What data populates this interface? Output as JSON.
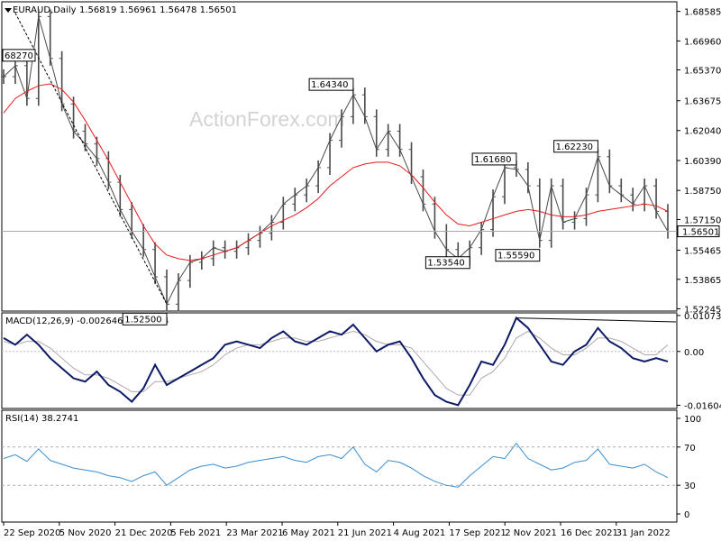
{
  "header": {
    "symbol": "EURAUD,Daily",
    "ohlc": "1.56819 1.56961 1.56478 1.56501"
  },
  "watermark": "ActionForex.com",
  "colors": {
    "price": "#4a4a4a",
    "ma": "#e31a1c",
    "macd": "#0d1a66",
    "signal": "#b3a7a7",
    "rsi": "#3b8ecf",
    "grid": "#888888"
  },
  "chart_data": [
    {
      "type": "candlestick",
      "title": "EURAUD,Daily",
      "ylim": [
        1.5212,
        1.6911
      ],
      "yticks": [
        1.68585,
        1.6696,
        1.6537,
        1.63675,
        1.6204,
        1.6039,
        1.5875,
        1.5715,
        1.55465,
        1.53865,
        1.52245
      ],
      "ytick_labels": [
        "1.68585",
        "1.66960",
        "1.65370",
        "1.63675",
        "1.62040",
        "1.60390",
        "1.58750",
        "1.57150",
        "1.55465",
        "1.53865",
        "1.52245"
      ],
      "last_price": "1.56501",
      "series": [
        {
          "name": "close",
          "values": [
            1.65,
            1.656,
            1.638,
            1.683,
            1.66,
            1.635,
            1.62,
            1.613,
            1.605,
            1.592,
            1.577,
            1.565,
            1.555,
            1.54,
            1.525,
            1.538,
            1.548,
            1.55,
            1.556,
            1.554,
            1.556,
            1.56,
            1.564,
            1.57,
            1.58,
            1.585,
            1.59,
            1.6,
            1.615,
            1.628,
            1.64,
            1.628,
            1.61,
            1.62,
            1.61,
            1.595,
            1.58,
            1.565,
            1.555,
            1.55,
            1.556,
            1.566,
            1.584,
            1.6,
            1.599,
            1.59,
            1.56,
            1.59,
            1.57,
            1.572,
            1.585,
            1.606,
            1.59,
            1.585,
            1.58,
            1.59,
            1.576,
            1.565
          ]
        },
        {
          "name": "ma",
          "values": [
            1.63,
            1.638,
            1.642,
            1.645,
            1.646,
            1.643,
            1.636,
            1.626,
            1.615,
            1.604,
            1.592,
            1.58,
            1.568,
            1.558,
            1.552,
            1.55,
            1.549,
            1.55,
            1.552,
            1.554,
            1.556,
            1.56,
            1.564,
            1.568,
            1.571,
            1.574,
            1.578,
            1.583,
            1.59,
            1.595,
            1.6,
            1.602,
            1.603,
            1.603,
            1.601,
            1.596,
            1.589,
            1.581,
            1.574,
            1.569,
            1.568,
            1.57,
            1.572,
            1.574,
            1.576,
            1.577,
            1.576,
            1.574,
            1.573,
            1.573,
            1.574,
            1.576,
            1.577,
            1.578,
            1.579,
            1.58,
            1.579,
            1.576
          ]
        }
      ],
      "annotations": [
        {
          "label": "68270",
          "date_index": 1
        },
        {
          "label": "1.52500",
          "date_index": 14
        },
        {
          "label": "1.64340",
          "date_index": 30
        },
        {
          "label": "1.53540",
          "date_index": 40
        },
        {
          "label": "1.61680",
          "date_index": 44
        },
        {
          "label": "1.55590",
          "date_index": 46
        },
        {
          "label": "1.62230",
          "date_index": 51
        }
      ],
      "trendline": {
        "from": {
          "date_index": 1,
          "price": 1.685
        },
        "to": {
          "date_index": 14,
          "price": 1.525
        }
      }
    },
    {
      "type": "line",
      "title": "MACD(12,26,9) -0.002646 0.001774",
      "ylim": [
        -0.017,
        0.0115
      ],
      "ytick_labels": [
        "0.010736",
        "0.00",
        "-0.016046"
      ],
      "yticks": [
        0.010736,
        0.0,
        -0.016046
      ],
      "series": [
        {
          "name": "MACD",
          "values": [
            0.004,
            0.002,
            0.005,
            0.002,
            -0.002,
            -0.005,
            -0.008,
            -0.009,
            -0.006,
            -0.01,
            -0.012,
            -0.015,
            -0.011,
            -0.004,
            -0.01,
            -0.008,
            -0.006,
            -0.004,
            -0.002,
            0.002,
            0.003,
            0.002,
            0.001,
            0.004,
            0.006,
            0.003,
            0.002,
            0.004,
            0.006,
            0.005,
            0.008,
            0.004,
            0.0,
            0.002,
            0.003,
            -0.002,
            -0.008,
            -0.013,
            -0.015,
            -0.016,
            -0.01,
            -0.003,
            -0.004,
            0.002,
            0.01,
            0.007,
            0.002,
            -0.003,
            -0.004,
            0.0,
            0.002,
            0.007,
            0.003,
            0.001,
            -0.002,
            -0.003,
            -0.002,
            -0.003
          ]
        },
        {
          "name": "signal",
          "values": [
            0.003,
            0.002,
            0.003,
            0.003,
            0.001,
            -0.002,
            -0.005,
            -0.007,
            -0.007,
            -0.008,
            -0.01,
            -0.012,
            -0.012,
            -0.009,
            -0.009,
            -0.008,
            -0.007,
            -0.006,
            -0.004,
            -0.001,
            0.001,
            0.002,
            0.002,
            0.003,
            0.004,
            0.004,
            0.003,
            0.003,
            0.004,
            0.005,
            0.006,
            0.005,
            0.003,
            0.002,
            0.002,
            0.001,
            -0.003,
            -0.007,
            -0.011,
            -0.013,
            -0.013,
            -0.008,
            -0.006,
            -0.002,
            0.004,
            0.006,
            0.004,
            0.001,
            -0.001,
            -0.001,
            0.001,
            0.004,
            0.004,
            0.003,
            0.001,
            -0.001,
            -0.001,
            0.002
          ]
        }
      ]
    },
    {
      "type": "line",
      "title": "RSI(14) 38.2741",
      "ylim": [
        0,
        100
      ],
      "yticks": [
        100,
        70,
        30,
        0
      ],
      "ytick_labels": [
        "100",
        "70",
        "30",
        "0"
      ],
      "series": [
        {
          "name": "RSI",
          "values": [
            58,
            62,
            55,
            68,
            56,
            52,
            48,
            46,
            44,
            40,
            38,
            34,
            40,
            44,
            30,
            38,
            46,
            50,
            52,
            48,
            50,
            54,
            56,
            58,
            60,
            56,
            54,
            60,
            62,
            58,
            70,
            52,
            44,
            56,
            54,
            48,
            40,
            34,
            30,
            28,
            40,
            50,
            60,
            58,
            74,
            58,
            52,
            46,
            48,
            54,
            56,
            68,
            52,
            50,
            48,
            52,
            44,
            38
          ]
        }
      ]
    }
  ],
  "x_axis": {
    "labels": [
      "22 Sep 2020",
      "5 Nov 2020",
      "21 Dec 2020",
      "5 Feb 2021",
      "23 Mar 2021",
      "6 May 2021",
      "21 Jun 2021",
      "4 Aug 2021",
      "17 Sep 2021",
      "2 Nov 2021",
      "16 Dec 2021",
      "31 Jan 2022"
    ]
  }
}
